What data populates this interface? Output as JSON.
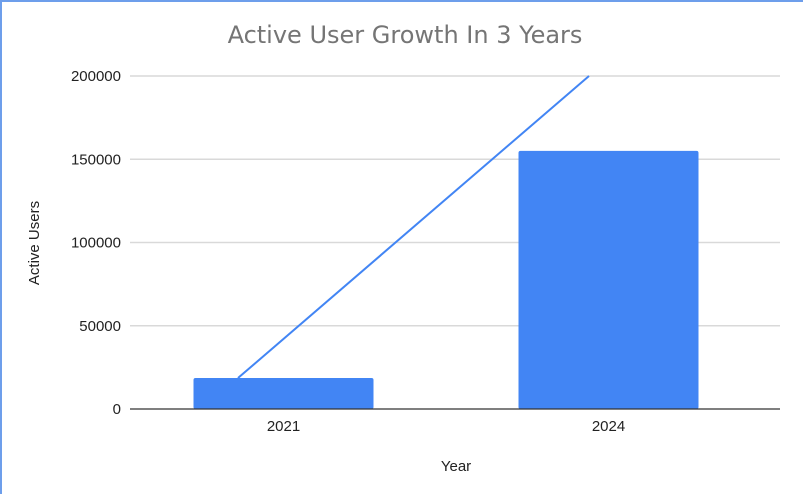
{
  "chart_data": {
    "type": "bar",
    "title": "Active User Growth In 3 Years",
    "xlabel": "Year",
    "ylabel": "Active Users",
    "categories": [
      "2021",
      "2024"
    ],
    "series": [
      {
        "name": "Active Users",
        "values": [
          18600,
          155000
        ],
        "color": "#4285f4"
      }
    ],
    "trendline": {
      "type": "linear",
      "color": "#4285f4",
      "points": [
        [
          -0.14,
          18600
        ],
        [
          0.94,
          200000
        ]
      ]
    },
    "ylim": [
      0,
      200000
    ],
    "yticks": [
      "0",
      "50000",
      "100000",
      "150000",
      "200000"
    ],
    "grid": true,
    "legend": "none"
  }
}
